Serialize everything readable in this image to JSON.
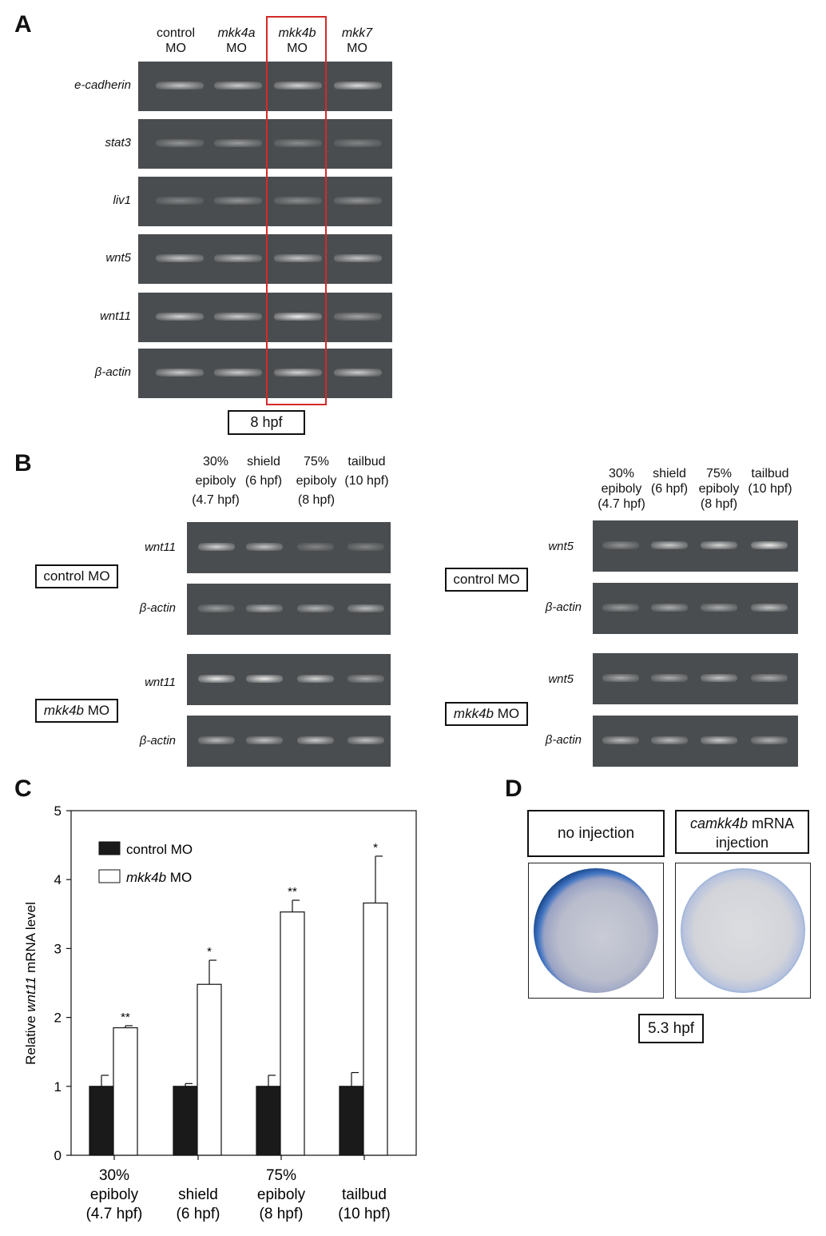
{
  "panelA": {
    "letter": "A",
    "lanes": [
      {
        "top": "control",
        "bottom": "MO",
        "italic": false
      },
      {
        "top": "mkk4a",
        "bottom": "MO",
        "italic": true
      },
      {
        "top": "mkk4b",
        "bottom": "MO",
        "italic": true
      },
      {
        "top": "mkk7",
        "bottom": "MO",
        "italic": true
      }
    ],
    "genes": [
      "e-cadherin",
      "stat3",
      "liv1",
      "wnt5",
      "wnt11",
      "β-actin"
    ],
    "timepoint": "8 hpf",
    "highlight_color": "#d42a2a"
  },
  "panelB": {
    "letter": "B",
    "stages": [
      {
        "l1": "30%",
        "l2": "epiboly",
        "l3": "(4.7 hpf)"
      },
      {
        "l1": "",
        "l2": "shield",
        "l3": "(6 hpf)"
      },
      {
        "l1": "75%",
        "l2": "epiboly",
        "l3": "(8 hpf)"
      },
      {
        "l1": "",
        "l2": "tailbud",
        "l3": "(10 hpf)"
      }
    ],
    "left": {
      "gene_top": "wnt11",
      "gene_bottom": "β-actin",
      "group1": "control MO",
      "group2_italic": "mkk4b",
      "group2_rest": " MO"
    },
    "right": {
      "gene_top": "wnt5",
      "gene_bottom": "β-actin",
      "group1": "control MO",
      "group2_italic": "mkk4b",
      "group2_rest": " MO"
    }
  },
  "panelC": {
    "letter": "C",
    "ylabel_pre": "Relative ",
    "ylabel_italic": "wnt11",
    "ylabel_post": " mRNA level",
    "legend": [
      {
        "label": "control MO",
        "italic_part": "",
        "fill": "#1a1a1a"
      },
      {
        "label": " MO",
        "italic_part": "mkk4b",
        "fill": "#ffffff"
      }
    ],
    "xtick_lines": [
      [
        "30%",
        "epiboly",
        "(4.7 hpf)"
      ],
      [
        "",
        "shield",
        "(6 hpf)"
      ],
      [
        "75%",
        "epiboly",
        "(8 hpf)"
      ],
      [
        "",
        "tailbud",
        "(10 hpf)"
      ]
    ]
  },
  "chart_data": {
    "type": "bar",
    "categories": [
      "30% epiboly (4.7 hpf)",
      "shield (6 hpf)",
      "75% epiboly (8 hpf)",
      "tailbud (10 hpf)"
    ],
    "series": [
      {
        "name": "control MO",
        "values": [
          1.0,
          1.0,
          1.0,
          1.0
        ],
        "errors": [
          0.16,
          0.04,
          0.16,
          0.2
        ]
      },
      {
        "name": "mkk4b MO",
        "values": [
          1.85,
          2.48,
          3.53,
          3.66
        ],
        "errors": [
          0.03,
          0.35,
          0.17,
          0.68
        ]
      }
    ],
    "significance": [
      "**",
      "*",
      "**",
      "*"
    ],
    "ylabel": "Relative wnt11 mRNA level",
    "yticks": [
      0,
      1,
      2,
      3,
      4,
      5
    ],
    "ylim": [
      0,
      5
    ]
  },
  "panelD": {
    "letter": "D",
    "left_title": "no injection",
    "right_title_italic": "camkk4b",
    "right_title_rest": " mRNA",
    "right_title_line2": "injection",
    "timepoint": "5.3 hpf"
  }
}
